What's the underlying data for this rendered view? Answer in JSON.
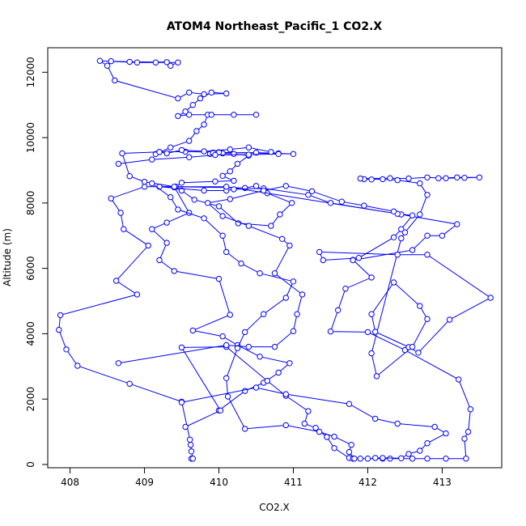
{
  "chart_data": {
    "type": "line",
    "title": "ATOM4 Northeast_Pacific_1 CO2.X",
    "xlabel": "CO2.X",
    "ylabel": "Altitude (m)",
    "xlim": [
      407.7,
      413.8
    ],
    "ylim": [
      -100,
      12750
    ],
    "x_ticks": [
      408,
      409,
      410,
      411,
      412,
      413
    ],
    "y_ticks": [
      0,
      2000,
      4000,
      6000,
      8000,
      10000,
      12000
    ],
    "grid": false,
    "legend": "none",
    "series_color": "#0000ff",
    "marker": "open-circle",
    "series": [
      {
        "values": [
          [
            409.63,
            180
          ],
          [
            409.65,
            180
          ],
          [
            409.63,
            400
          ],
          [
            409.62,
            600
          ],
          [
            409.61,
            760
          ],
          [
            409.5,
            1920
          ],
          [
            408.8,
            2470
          ],
          [
            408.1,
            3020
          ],
          [
            407.95,
            3520
          ],
          [
            407.85,
            4120
          ],
          [
            407.87,
            4570
          ],
          [
            408.9,
            5200
          ],
          [
            408.62,
            5620
          ],
          [
            409.05,
            6700
          ],
          [
            408.72,
            7200
          ],
          [
            408.68,
            7700
          ],
          [
            408.55,
            8140
          ],
          [
            409.0,
            8500
          ],
          [
            409.42,
            8500
          ],
          [
            410.35,
            8460
          ],
          [
            410.5,
            8520
          ],
          [
            410.65,
            8300
          ],
          [
            410.98,
            8000
          ],
          [
            410.82,
            7650
          ],
          [
            410.7,
            7300
          ],
          [
            410.26,
            7380
          ],
          [
            410.0,
            7900
          ],
          [
            409.67,
            8100
          ],
          [
            409.5,
            8380
          ],
          [
            409.4,
            8480
          ],
          [
            409.5,
            8620
          ],
          [
            409.95,
            8660
          ],
          [
            410.2,
            8680
          ],
          [
            410.05,
            8830
          ],
          [
            410.15,
            8970
          ],
          [
            410.25,
            9200
          ],
          [
            410.4,
            9450
          ],
          [
            410.2,
            9500
          ],
          [
            410.05,
            9520
          ],
          [
            409.88,
            9500
          ],
          [
            409.92,
            9540
          ],
          [
            410.5,
            9540
          ],
          [
            410.8,
            9520
          ],
          [
            411.0,
            9500
          ],
          [
            410.0,
            9550
          ],
          [
            409.55,
            9570
          ],
          [
            409.2,
            9560
          ],
          [
            409.15,
            9500
          ],
          [
            409.35,
            9700
          ],
          [
            409.6,
            9900
          ],
          [
            409.7,
            10200
          ],
          [
            409.8,
            10400
          ],
          [
            409.85,
            10700
          ],
          [
            409.9,
            10700
          ],
          [
            410.2,
            10700
          ],
          [
            410.5,
            10700
          ],
          [
            409.6,
            10700
          ],
          [
            409.45,
            10660
          ],
          [
            409.55,
            10800
          ],
          [
            409.65,
            11000
          ],
          [
            409.75,
            11200
          ],
          [
            409.9,
            11380
          ],
          [
            410.1,
            11350
          ],
          [
            409.8,
            11330
          ],
          [
            409.6,
            11380
          ],
          [
            409.45,
            11200
          ],
          [
            408.6,
            11750
          ],
          [
            408.5,
            12200
          ],
          [
            408.4,
            12350
          ],
          [
            408.9,
            12300
          ],
          [
            409.15,
            12300
          ],
          [
            409.45,
            12300
          ],
          [
            409.35,
            12200
          ],
          [
            409.3,
            12310
          ],
          [
            408.8,
            12320
          ],
          [
            408.55,
            12340
          ]
        ]
      },
      {
        "values": [
          [
            411.9,
            180
          ],
          [
            412.0,
            180
          ],
          [
            412.2,
            180
          ],
          [
            412.3,
            180
          ],
          [
            412.6,
            180
          ],
          [
            412.8,
            180
          ],
          [
            413.05,
            180
          ],
          [
            413.32,
            180
          ],
          [
            413.3,
            790
          ],
          [
            413.35,
            1000
          ],
          [
            413.38,
            1690
          ],
          [
            413.22,
            2600
          ],
          [
            412.5,
            3500
          ],
          [
            412.0,
            4050
          ],
          [
            411.5,
            4070
          ],
          [
            411.6,
            4720
          ],
          [
            411.7,
            5380
          ],
          [
            412.05,
            5720
          ],
          [
            411.8,
            6260
          ],
          [
            411.8,
            6250
          ],
          [
            412.6,
            6560
          ],
          [
            412.8,
            7000
          ],
          [
            413.0,
            7000
          ],
          [
            413.2,
            7350
          ],
          [
            412.45,
            7650
          ],
          [
            411.5,
            8000
          ],
          [
            411.2,
            8250
          ],
          [
            410.6,
            8450
          ],
          [
            410.2,
            8420
          ],
          [
            410.1,
            8380
          ],
          [
            409.8,
            8380
          ],
          [
            409.2,
            8500
          ],
          [
            410.1,
            8500
          ],
          [
            412.4,
            7670
          ],
          [
            412.6,
            7620
          ],
          [
            412.45,
            7200
          ],
          [
            412.35,
            6950
          ],
          [
            411.88,
            6320
          ],
          [
            411.4,
            6250
          ],
          [
            411.35,
            6500
          ],
          [
            412.4,
            6420
          ],
          [
            412.8,
            6420
          ],
          [
            413.65,
            5100
          ],
          [
            413.1,
            4430
          ],
          [
            412.68,
            3420
          ],
          [
            412.55,
            3590
          ],
          [
            412.1,
            4060
          ],
          [
            412.05,
            4600
          ],
          [
            412.35,
            5570
          ],
          [
            412.7,
            4850
          ],
          [
            412.8,
            4450
          ],
          [
            412.6,
            3600
          ],
          [
            412.12,
            2700
          ],
          [
            412.05,
            3400
          ],
          [
            412.45,
            6920
          ],
          [
            412.5,
            7100
          ],
          [
            412.7,
            7650
          ],
          [
            412.8,
            8250
          ],
          [
            412.7,
            8600
          ],
          [
            412.4,
            8700
          ],
          [
            412.2,
            8730
          ],
          [
            412.05,
            8720
          ],
          [
            411.95,
            8730
          ],
          [
            411.9,
            8750
          ],
          [
            412.3,
            8760
          ],
          [
            412.55,
            8750
          ],
          [
            412.8,
            8780
          ],
          [
            413.05,
            8760
          ],
          [
            413.3,
            8770
          ],
          [
            413.5,
            8780
          ],
          [
            413.2,
            8780
          ],
          [
            412.95,
            8760
          ]
        ]
      },
      {
        "values": [
          [
            410.0,
            1650
          ],
          [
            410.35,
            2250
          ],
          [
            410.6,
            2500
          ],
          [
            410.8,
            2810
          ],
          [
            410.95,
            3100
          ],
          [
            410.55,
            3300
          ],
          [
            410.25,
            3650
          ],
          [
            410.05,
            3920
          ],
          [
            409.65,
            4100
          ],
          [
            410.15,
            4580
          ],
          [
            410.0,
            5680
          ],
          [
            409.4,
            5920
          ],
          [
            409.2,
            6250
          ],
          [
            409.3,
            6780
          ],
          [
            409.1,
            7200
          ],
          [
            409.3,
            7400
          ],
          [
            409.6,
            7700
          ],
          [
            409.4,
            8500
          ],
          [
            409.0,
            8650
          ],
          [
            408.8,
            8820
          ],
          [
            408.7,
            9520
          ],
          [
            409.2,
            9560
          ],
          [
            409.3,
            9520
          ],
          [
            409.5,
            9620
          ],
          [
            409.8,
            9580
          ],
          [
            410.15,
            9640
          ],
          [
            410.4,
            9700
          ],
          [
            410.7,
            9560
          ],
          [
            410.8,
            9500
          ],
          [
            410.4,
            9480
          ],
          [
            409.95,
            9470
          ],
          [
            409.6,
            9400
          ],
          [
            409.1,
            9330
          ],
          [
            408.65,
            9200
          ]
        ]
      },
      {
        "values": [
          [
            409.55,
            1150
          ],
          [
            410.02,
            1650
          ],
          [
            409.5,
            3580
          ],
          [
            410.1,
            3600
          ],
          [
            410.65,
            2560
          ],
          [
            410.9,
            2100
          ],
          [
            411.2,
            1630
          ],
          [
            411.15,
            1250
          ],
          [
            411.3,
            1120
          ],
          [
            411.45,
            840
          ],
          [
            411.55,
            500
          ],
          [
            411.75,
            200
          ],
          [
            411.8,
            180
          ],
          [
            411.82,
            180
          ],
          [
            411.75,
            380
          ],
          [
            411.78,
            600
          ],
          [
            411.55,
            850
          ],
          [
            411.35,
            1000
          ],
          [
            410.9,
            1200
          ],
          [
            410.35,
            1090
          ],
          [
            410.12,
            2080
          ],
          [
            410.1,
            2640
          ],
          [
            410.25,
            3560
          ],
          [
            410.35,
            4050
          ],
          [
            410.6,
            4600
          ],
          [
            410.9,
            5100
          ],
          [
            411.0,
            5600
          ],
          [
            410.55,
            5850
          ],
          [
            410.3,
            6150
          ],
          [
            410.1,
            6500
          ],
          [
            410.05,
            7000
          ],
          [
            409.8,
            7530
          ],
          [
            409.45,
            7800
          ],
          [
            409.35,
            8180
          ],
          [
            409.1,
            8600
          ]
        ]
      },
      {
        "values": [
          [
            409.5,
            1900
          ],
          [
            410.5,
            2350
          ],
          [
            410.9,
            2150
          ],
          [
            411.75,
            1850
          ],
          [
            412.1,
            1400
          ],
          [
            412.4,
            1250
          ],
          [
            412.9,
            1150
          ],
          [
            413.05,
            950
          ],
          [
            412.8,
            650
          ],
          [
            412.7,
            420
          ],
          [
            412.55,
            320
          ],
          [
            412.45,
            190
          ],
          [
            412.2,
            200
          ],
          [
            412.1,
            200
          ]
        ]
      },
      {
        "values": [
          [
            408.65,
            3100
          ],
          [
            410.1,
            3650
          ],
          [
            410.4,
            3600
          ],
          [
            410.75,
            3600
          ],
          [
            411.0,
            4080
          ],
          [
            411.05,
            4600
          ],
          [
            411.12,
            5200
          ],
          [
            410.75,
            5850
          ],
          [
            410.95,
            6700
          ],
          [
            410.85,
            6900
          ],
          [
            410.4,
            7300
          ],
          [
            410.05,
            7600
          ],
          [
            409.85,
            8000
          ],
          [
            410.15,
            8120
          ],
          [
            410.6,
            8380
          ],
          [
            410.9,
            8520
          ],
          [
            411.25,
            8360
          ],
          [
            411.65,
            8040
          ],
          [
            411.95,
            7920
          ],
          [
            412.35,
            7740
          ]
        ]
      }
    ]
  }
}
